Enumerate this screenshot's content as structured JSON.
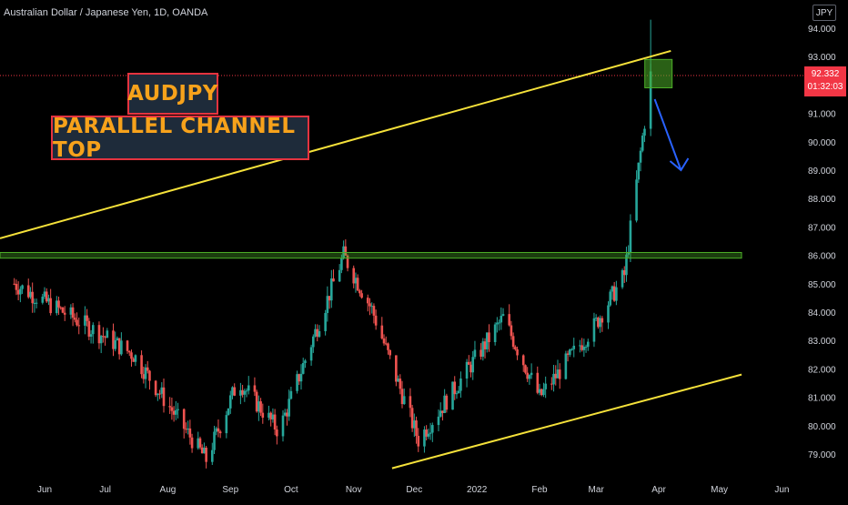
{
  "header": {
    "symbol_title": "Australian Dollar / Japanese Yen, 1D, OANDA",
    "currency_badge": "JPY"
  },
  "annotations": {
    "ticker_label": "AUDJPY",
    "pattern_label": "PARALLEL CHANNEL TOP"
  },
  "price_tag": {
    "price": "92.332",
    "countdown": "01:32:03",
    "color": "#f23645"
  },
  "colors": {
    "background": "#000000",
    "up_candle": "#26a69a",
    "down_candle": "#ef5350",
    "channel_line": "#f5e13a",
    "support_zone": "#4caf28",
    "arrow": "#2962ff"
  },
  "chart_data": {
    "type": "candlestick",
    "ylim": [
      78.5,
      94.7
    ],
    "y_ticks": [
      "94.000",
      "93.000",
      "92.000",
      "91.000",
      "90.000",
      "89.000",
      "88.000",
      "87.000",
      "86.000",
      "85.000",
      "84.000",
      "83.000",
      "82.000",
      "81.000",
      "80.000",
      "79.000"
    ],
    "x_ticks": [
      "Jun",
      "Jul",
      "Aug",
      "Sep",
      "Oct",
      "Nov",
      "Dec",
      "2022",
      "Feb",
      "Mar",
      "Apr",
      "May",
      "Jun"
    ],
    "key_points": [
      {
        "date": "2021-05-17",
        "close": 85.0
      },
      {
        "date": "2021-06-20",
        "close": 83.6
      },
      {
        "date": "2021-07-15",
        "close": 82.5
      },
      {
        "date": "2021-08-20",
        "close": 78.8
      },
      {
        "date": "2021-09-05",
        "close": 81.6
      },
      {
        "date": "2021-09-25",
        "close": 79.8
      },
      {
        "date": "2021-10-27",
        "close": 86.0
      },
      {
        "date": "2021-11-10",
        "close": 84.1
      },
      {
        "date": "2021-12-03",
        "close": 79.5
      },
      {
        "date": "2021-12-20",
        "close": 81.2
      },
      {
        "date": "2022-01-14",
        "close": 83.8
      },
      {
        "date": "2022-02-01",
        "close": 81.0
      },
      {
        "date": "2022-02-28",
        "close": 83.5
      },
      {
        "date": "2022-03-15",
        "close": 85.3
      },
      {
        "date": "2022-03-28",
        "close": 92.332
      }
    ],
    "drawings": {
      "channel_top": {
        "from": {
          "date": "2021-05-01",
          "price": 86.6
        },
        "to": {
          "date": "2022-04-07",
          "price": 93.2
        }
      },
      "channel_bottom": {
        "from": {
          "date": "2021-11-20",
          "price": 78.5
        },
        "to": {
          "date": "2022-05-12",
          "price": 81.8
        }
      },
      "resistance_zone": {
        "price_low": 85.9,
        "price_high": 86.1
      },
      "highlight_box": {
        "price_low": 91.9,
        "price_high": 92.9
      },
      "projection_arrow": {
        "from": {
          "date": "2022-03-30",
          "price": 91.5
        },
        "to": {
          "date": "2022-04-12",
          "price": 89.0
        }
      }
    },
    "title": "Australian Dollar / Japanese Yen, 1D, OANDA"
  }
}
